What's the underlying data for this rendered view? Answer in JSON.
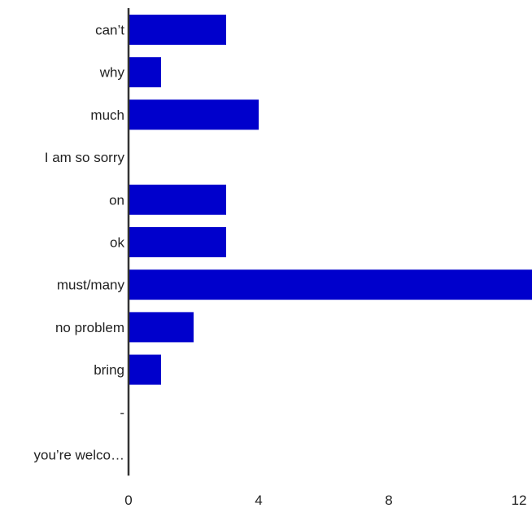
{
  "chart_data": {
    "type": "bar",
    "orientation": "horizontal",
    "categories": [
      "can’t",
      "why",
      "much",
      "I am so sorry",
      "on",
      "ok",
      "must/many",
      "no problem",
      "bring",
      "-",
      "you’re welco…"
    ],
    "values": [
      3,
      1,
      4,
      0,
      3,
      3,
      12.4,
      2,
      1,
      0,
      0
    ],
    "xlim": [
      0,
      12.4
    ],
    "xticks": [
      0,
      4,
      8,
      12
    ],
    "title": "",
    "xlabel": "",
    "ylabel": "",
    "grid": false,
    "legend": "none",
    "bar_color": "#0000cc",
    "axis_color": "#333333"
  }
}
